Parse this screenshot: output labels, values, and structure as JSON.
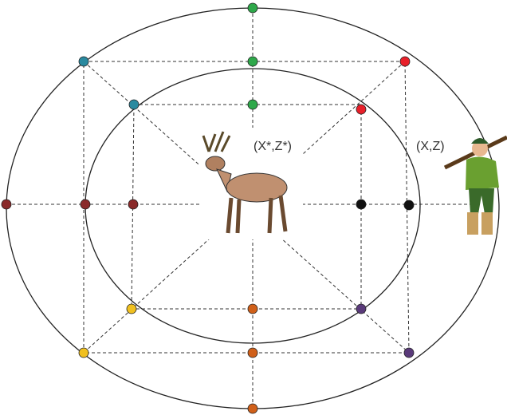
{
  "labels": {
    "deer_position": "(X*,Z*)",
    "hunter_position": "(X,Z)"
  }
}
